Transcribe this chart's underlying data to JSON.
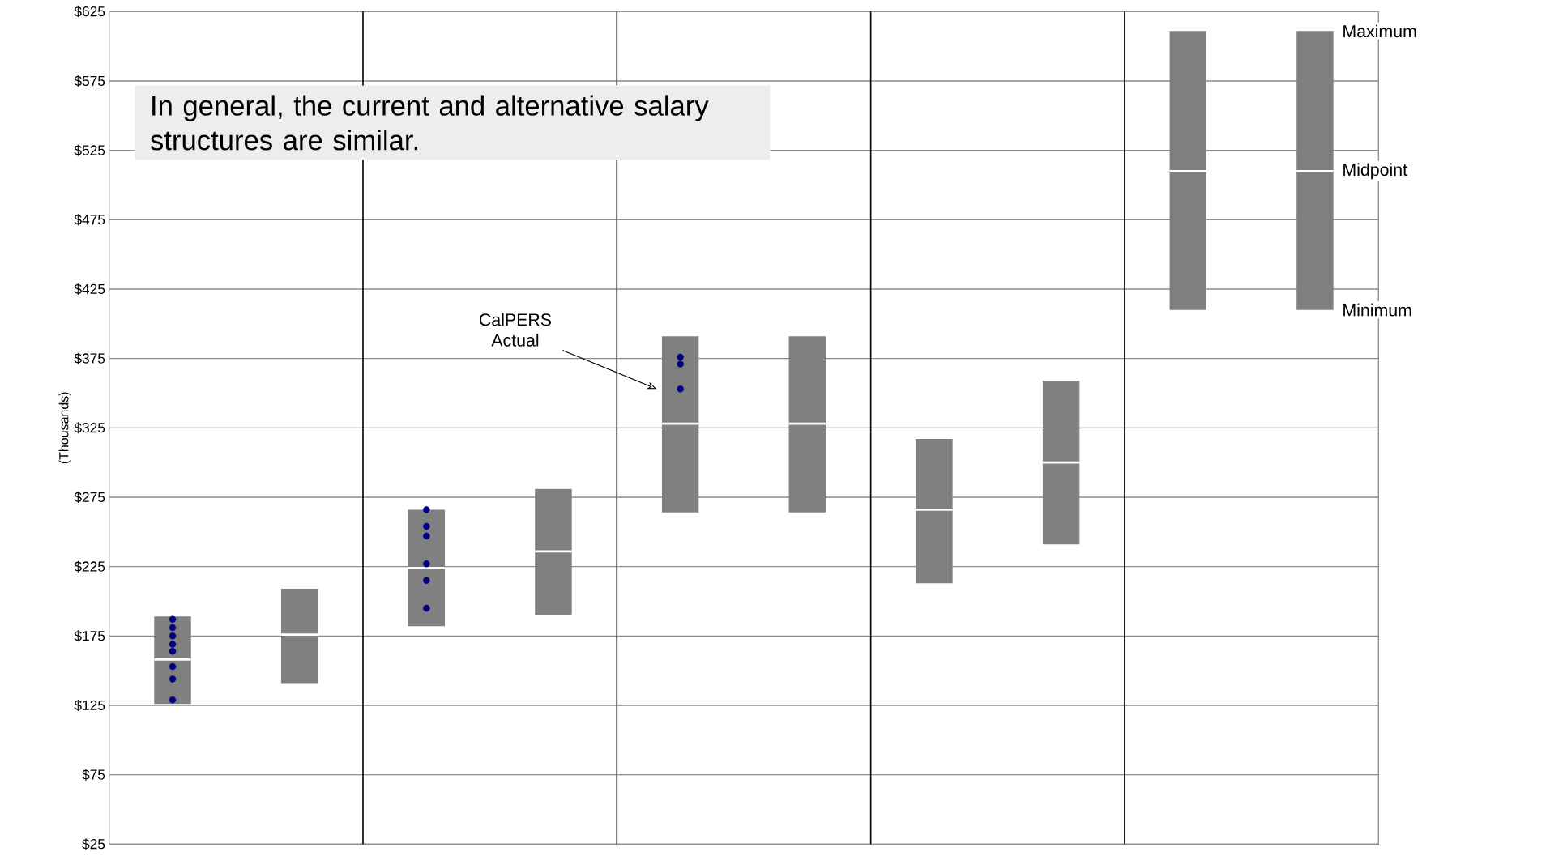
{
  "chart_data": {
    "type": "box",
    "ylabel": "(Thousands)",
    "categories": [
      null,
      null,
      null,
      null,
      null,
      null,
      null,
      null,
      null,
      null
    ],
    "ylim": [
      25,
      625
    ],
    "yticks": [
      {
        "value": 25,
        "label": "$25"
      },
      {
        "value": 75,
        "label": "$75"
      },
      {
        "value": 125,
        "label": "$125"
      },
      {
        "value": 175,
        "label": "$175"
      },
      {
        "value": 225,
        "label": "$225"
      },
      {
        "value": 275,
        "label": "$275"
      },
      {
        "value": 325,
        "label": "$325"
      },
      {
        "value": 375,
        "label": "$375"
      },
      {
        "value": 425,
        "label": "$425"
      },
      {
        "value": 475,
        "label": "$475"
      },
      {
        "value": 525,
        "label": "$525"
      },
      {
        "value": 575,
        "label": "$575"
      },
      {
        "value": 625,
        "label": "$625"
      }
    ],
    "grid": "y",
    "series": [
      {
        "color": "#808080",
        "boxes": [
          {
            "low": 126,
            "q1": 126,
            "median": 158,
            "q3": 189,
            "high": 189
          },
          {
            "low": 141,
            "q1": 141,
            "median": 176,
            "q3": 209,
            "high": 209
          },
          {
            "low": 182,
            "q1": 182,
            "median": 224,
            "q3": 266,
            "high": 266
          },
          {
            "low": 190,
            "q1": 190,
            "median": 236,
            "q3": 281,
            "high": 281
          },
          {
            "low": 264,
            "q1": 264,
            "median": 328,
            "q3": 391,
            "high": 391
          },
          {
            "low": 264,
            "q1": 264,
            "median": 328,
            "q3": 391,
            "high": 391
          },
          {
            "low": 213,
            "q1": 213,
            "median": 266,
            "q3": 317,
            "high": 317
          },
          {
            "low": 241,
            "q1": 241,
            "median": 300,
            "q3": 359,
            "high": 359
          },
          {
            "low": 410,
            "q1": 410,
            "median": 510,
            "q3": 611,
            "high": 611
          },
          {
            "low": 410,
            "q1": 410,
            "median": 510,
            "q3": 611,
            "high": 611
          }
        ]
      },
      {
        "type": "scatter",
        "color": "#000080",
        "values": [
          187,
          null,
          266,
          null,
          376,
          null,
          null,
          null,
          null,
          null
        ]
      },
      {
        "type": "scatter",
        "color": "#000080",
        "values": [
          181,
          null,
          254,
          null,
          371,
          null,
          null,
          null,
          null,
          null
        ]
      },
      {
        "type": "scatter",
        "color": "#000080",
        "values": [
          175,
          null,
          247,
          null,
          353,
          null,
          null,
          null,
          null,
          null
        ]
      },
      {
        "type": "scatter",
        "color": "#000080",
        "values": [
          169,
          null,
          227,
          null,
          null,
          null,
          null,
          null,
          null,
          null
        ]
      },
      {
        "type": "scatter",
        "color": "#000080",
        "values": [
          164,
          null,
          215,
          null,
          null,
          null,
          null,
          null,
          null,
          null
        ]
      },
      {
        "type": "scatter",
        "color": "#000080",
        "values": [
          153,
          null,
          195,
          null,
          null,
          null,
          null,
          null,
          null,
          null
        ]
      },
      {
        "type": "scatter",
        "color": "#000080",
        "values": [
          144,
          null,
          null,
          null,
          null,
          null,
          null,
          null,
          null,
          null
        ]
      },
      {
        "type": "scatter",
        "color": "#000080",
        "values": [
          129,
          null,
          null,
          null,
          null,
          null,
          null,
          null,
          null,
          null
        ]
      }
    ],
    "annotations": [
      "In general, the current and alternative salary structures are similar.",
      "CalPERS Actual",
      "Maximum",
      "Midpoint",
      "Minimum"
    ]
  }
}
